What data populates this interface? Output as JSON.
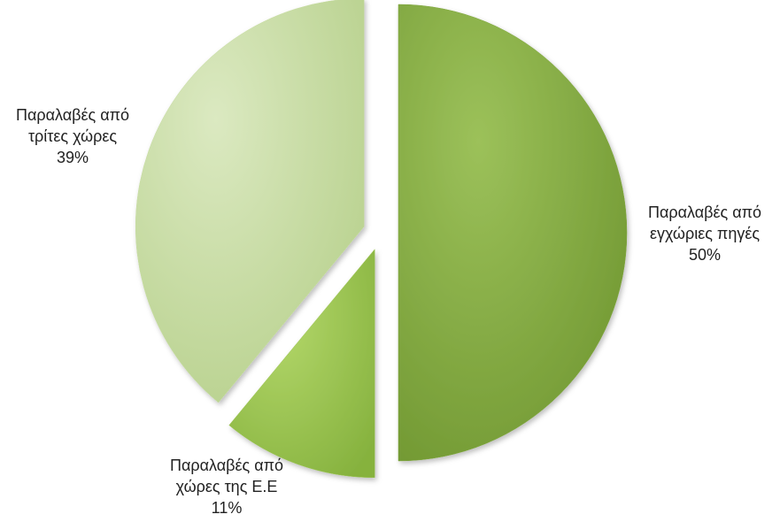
{
  "chart_data": {
    "type": "pie",
    "title": "",
    "slices": [
      {
        "label_lines": [
          "Παραλαβές από",
          "εγχώριες πηγές"
        ],
        "percent_label": "50%",
        "value": 50,
        "color": "#7ea63c",
        "exploded": true
      },
      {
        "label_lines": [
          "Παραλαβές από",
          "χώρες της Ε.Ε"
        ],
        "percent_label": "11%",
        "value": 11,
        "color": "#9cc453",
        "exploded": true
      },
      {
        "label_lines": [
          "Παραλαβές από",
          "τρίτες χώρες"
        ],
        "percent_label": "39%",
        "value": 39,
        "color": "#c6dc9f",
        "exploded": true
      }
    ],
    "legend": "none",
    "start_position": "top, clockwise"
  }
}
